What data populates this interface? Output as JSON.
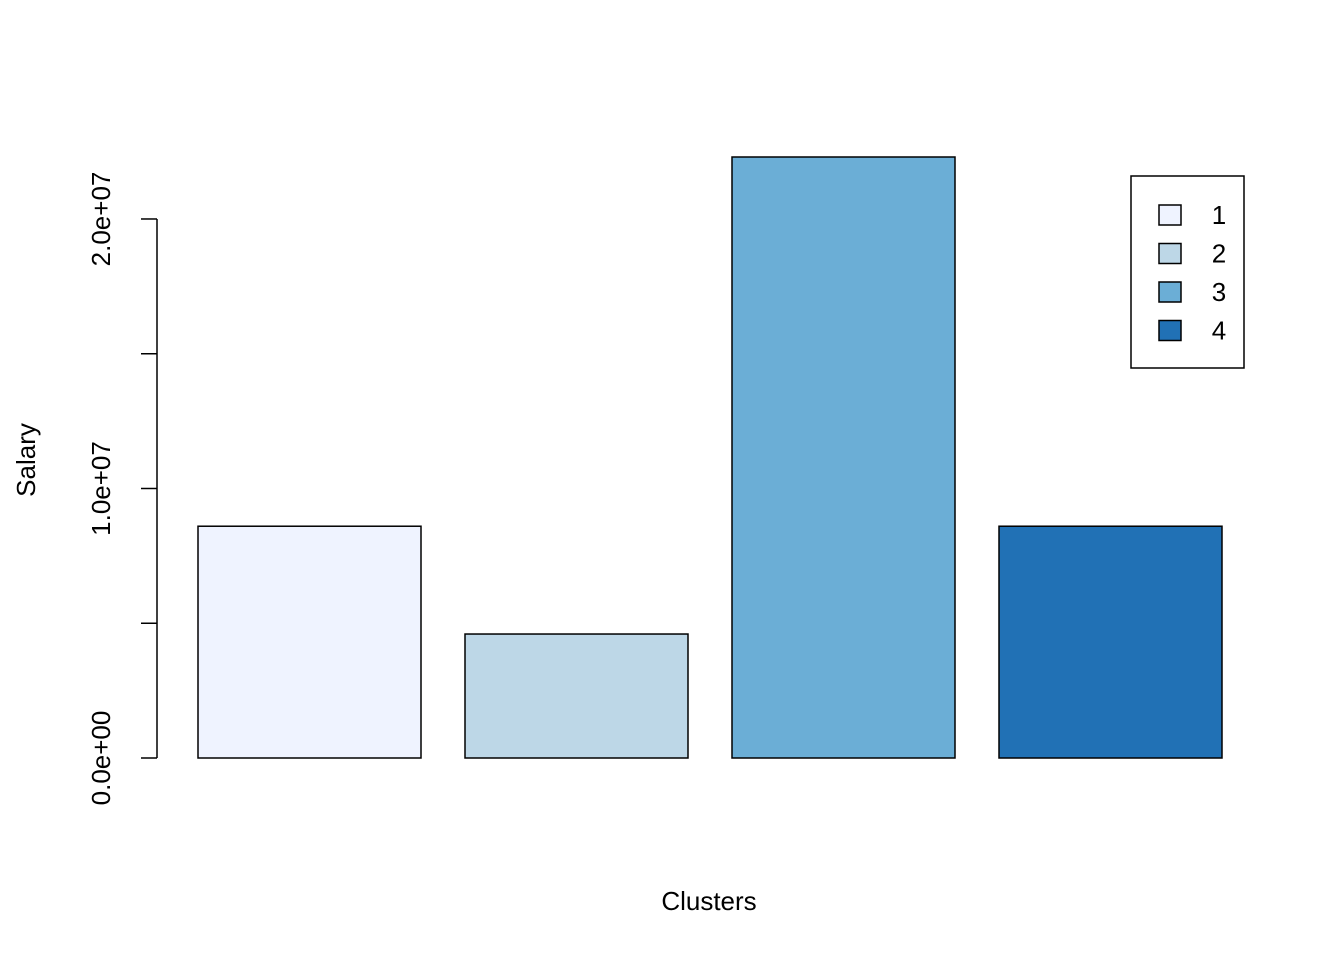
{
  "chart_data": {
    "type": "bar",
    "title": "",
    "xlabel": "Clusters",
    "ylabel": "Salary",
    "categories": [
      "1",
      "2",
      "3",
      "4"
    ],
    "values": [
      8600000,
      4600000,
      22300000,
      8600000
    ],
    "colors": [
      "#EFF3FF",
      "#BDD7E7",
      "#6BAED6",
      "#2171B5"
    ],
    "ylim": [
      0,
      22300000
    ],
    "y_ticks": [
      0,
      5000000,
      10000000,
      15000000,
      20000000
    ],
    "y_tick_labels": [
      "0.0e+00",
      "",
      "1.0e+07",
      "",
      "2.0e+07"
    ],
    "legend": {
      "position": "top-right",
      "entries": [
        "1",
        "2",
        "3",
        "4"
      ]
    },
    "grid": false
  }
}
